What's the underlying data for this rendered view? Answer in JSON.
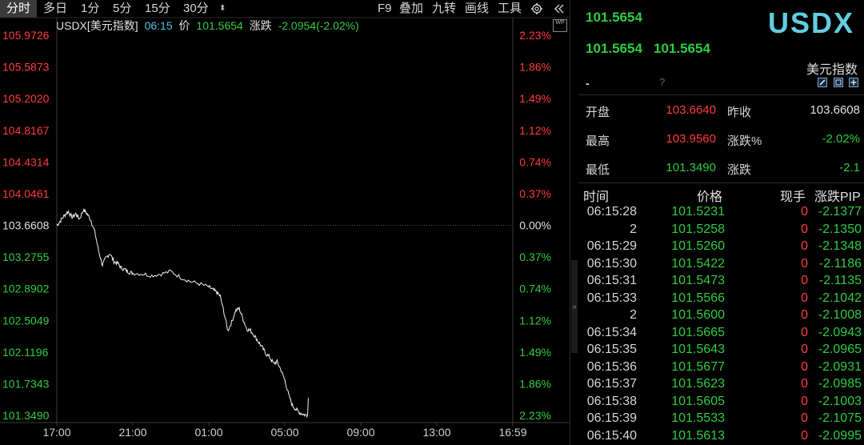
{
  "toolbar": {
    "tabs": [
      {
        "label": "分时",
        "active": true
      },
      {
        "label": "多日",
        "active": false
      },
      {
        "label": "1分",
        "active": false
      },
      {
        "label": "5分",
        "active": false
      },
      {
        "label": "15分",
        "active": false
      },
      {
        "label": "30分",
        "active": false
      }
    ],
    "more_arrow": "⬍",
    "right_items": [
      "F9",
      "叠加",
      "九转",
      "画线",
      "工具"
    ],
    "settings_icon": "gear-icon",
    "collapse_icon": "double-chevron-left-icon"
  },
  "quote": {
    "symbol": "USDX[美元指数]",
    "time": "06:15",
    "price_label": "价",
    "price": "101.5654",
    "change_label": "涨跌",
    "change": "-2.0954(-2.02%)"
  },
  "wp_badge": "WP",
  "chart_data": {
    "type": "line",
    "y_ticks": [
      "105.9726",
      "105.5873",
      "105.2020",
      "104.8167",
      "104.4314",
      "104.0461",
      "103.6608",
      "103.2755",
      "102.8902",
      "102.5049",
      "102.1196",
      "101.7343",
      "101.3490"
    ],
    "pct_ticks": [
      "2.23%",
      "1.86%",
      "1.49%",
      "1.12%",
      "0.74%",
      "0.37%",
      "0.00%",
      "0.37%",
      "0.74%",
      "1.12%",
      "1.49%",
      "1.86%",
      "2.23%"
    ],
    "x_ticks": [
      "17:00",
      "21:00",
      "01:00",
      "05:00",
      "09:00",
      "13:00",
      "16:59"
    ],
    "ylim": [
      101.349,
      105.9726
    ],
    "reference": 103.6608,
    "x_range_hours": [
      0,
      24
    ],
    "series": [
      {
        "x": [
          0,
          0.2,
          0.4,
          0.6,
          0.8,
          1.0,
          1.2,
          1.4,
          1.6,
          1.8,
          2.0,
          2.2,
          2.4,
          2.6,
          2.8,
          3.0,
          3.2,
          3.4,
          3.6,
          3.8,
          4.0,
          4.5,
          5.0,
          5.5,
          6.0,
          6.5,
          7.0,
          7.5,
          8.0,
          8.2,
          8.4,
          8.6,
          8.8,
          9.0,
          9.2,
          9.4,
          9.6,
          9.8,
          10.0,
          10.2,
          10.4,
          10.6,
          10.8,
          11.0,
          11.2,
          11.4,
          11.6,
          11.8,
          12.0,
          12.2,
          12.4,
          12.6,
          12.8,
          13.0,
          13.2,
          13.24
        ],
        "y": [
          103.66,
          103.72,
          103.78,
          103.83,
          103.76,
          103.8,
          103.74,
          103.85,
          103.8,
          103.72,
          103.58,
          103.35,
          103.18,
          103.27,
          103.32,
          103.22,
          103.2,
          103.14,
          103.12,
          103.09,
          103.08,
          103.07,
          103.05,
          103.07,
          103.1,
          103.03,
          102.98,
          102.95,
          102.91,
          102.88,
          102.85,
          102.8,
          102.6,
          102.38,
          102.48,
          102.62,
          102.65,
          102.52,
          102.4,
          102.38,
          102.32,
          102.25,
          102.18,
          102.1,
          102.06,
          101.98,
          102.0,
          101.9,
          101.78,
          101.6,
          101.47,
          101.42,
          101.38,
          101.36,
          101.35,
          101.56
        ]
      }
    ]
  },
  "panel": {
    "price_1": "101.5654",
    "price_2": "101.5654",
    "price_3": "101.5654",
    "dash": "-",
    "qmark": "?",
    "symbol": "USDX",
    "name_cn": "美元指数",
    "icons": [
      "edit-icon",
      "window-icon",
      "add-icon"
    ],
    "stats": [
      {
        "label": "开盘",
        "value": "103.6640",
        "color": "#ff3b3b",
        "label2": "昨收",
        "value2": "103.6608",
        "color2": "#e0e0e0"
      },
      {
        "label": "最高",
        "value": "103.9560",
        "color": "#ff3b3b",
        "label2": "涨跌%",
        "value2": "-2.02%",
        "color2": "#2ecc40"
      },
      {
        "label": "最低",
        "value": "101.3490",
        "color": "#2ecc40",
        "label2": "涨跌",
        "value2": "-2.1",
        "color2": "#2ecc40"
      }
    ]
  },
  "trades": {
    "headers": {
      "time": "时间",
      "price": "价格",
      "volume": "现手",
      "pip": "涨跌PIP"
    },
    "rows": [
      {
        "time": "06:15:28",
        "price": "101.5231",
        "volume": "0",
        "pip": "-2.1377"
      },
      {
        "time": "2",
        "price": "101.5258",
        "volume": "0",
        "pip": "-2.1350"
      },
      {
        "time": "06:15:29",
        "price": "101.5260",
        "volume": "0",
        "pip": "-2.1348"
      },
      {
        "time": "06:15:30",
        "price": "101.5422",
        "volume": "0",
        "pip": "-2.1186"
      },
      {
        "time": "06:15:31",
        "price": "101.5473",
        "volume": "0",
        "pip": "-2.1135"
      },
      {
        "time": "06:15:33",
        "price": "101.5566",
        "volume": "0",
        "pip": "-2.1042"
      },
      {
        "time": "2",
        "price": "101.5600",
        "volume": "0",
        "pip": "-2.1008"
      },
      {
        "time": "06:15:34",
        "price": "101.5665",
        "volume": "0",
        "pip": "-2.0943"
      },
      {
        "time": "06:15:35",
        "price": "101.5643",
        "volume": "0",
        "pip": "-2.0965"
      },
      {
        "time": "06:15:36",
        "price": "101.5677",
        "volume": "0",
        "pip": "-2.0931"
      },
      {
        "time": "06:15:37",
        "price": "101.5623",
        "volume": "0",
        "pip": "-2.0985"
      },
      {
        "time": "06:15:38",
        "price": "101.5605",
        "volume": "0",
        "pip": "-2.1003"
      },
      {
        "time": "06:15:39",
        "price": "101.5533",
        "volume": "0",
        "pip": "-2.1075"
      },
      {
        "time": "06:15:40",
        "price": "101.5613",
        "volume": "0",
        "pip": "-2.0995"
      }
    ]
  }
}
